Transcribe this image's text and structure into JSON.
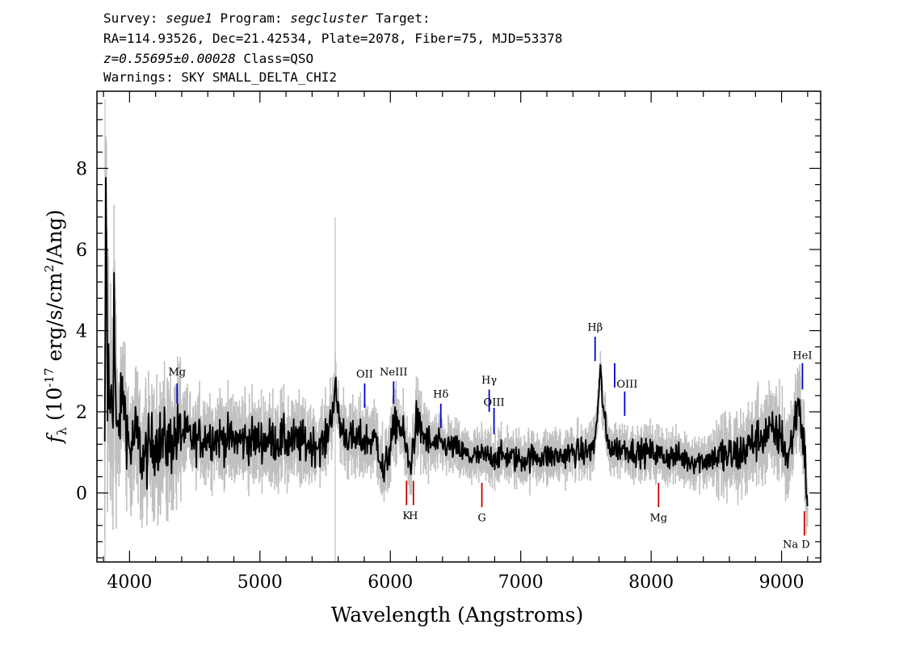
{
  "header": {
    "line1": {
      "prefix": "Survey: ",
      "survey": "segue1",
      "mid": " Program: ",
      "program": "segcluster",
      "suffix": " Target:"
    },
    "line2": "RA=114.93526, Dec=21.42534, Plate=2078, Fiber=75, MJD=53378",
    "line3": {
      "redshift": "z=0.55695±0.00028",
      "cls": " Class=QSO"
    },
    "line4": "Warnings: SKY SMALL_DELTA_CHI2"
  },
  "chart_data": {
    "type": "line",
    "xlabel": "Wavelength (Angstroms)",
    "ylabel": "f_λ (10^-17 erg/s/cm²/Ang)",
    "xlim": [
      3750,
      9300
    ],
    "ylim": [
      -1.7,
      9.9
    ],
    "x_ticks": [
      4000,
      5000,
      6000,
      7000,
      8000,
      9000
    ],
    "y_ticks": [
      0,
      2,
      4,
      6,
      8
    ],
    "colors": {
      "flux": "#000000",
      "error": "#c0c0c0",
      "emission": "#0000cc",
      "absorption": "#cc0000"
    },
    "series": [
      {
        "role": "flux",
        "anchors": [
          [
            3810,
            0.5
          ],
          [
            3820,
            8.2
          ],
          [
            3830,
            2.0
          ],
          [
            3840,
            4.0
          ],
          [
            3850,
            1.0
          ],
          [
            3860,
            3.0
          ],
          [
            3870,
            2.0
          ],
          [
            3880,
            4.8
          ],
          [
            3900,
            1.2
          ],
          [
            3950,
            2.5
          ],
          [
            4000,
            1.0
          ],
          [
            4050,
            1.5
          ],
          [
            4100,
            0.8
          ],
          [
            4200,
            1.3
          ],
          [
            4300,
            1.2
          ],
          [
            4400,
            1.5
          ],
          [
            4500,
            1.3
          ],
          [
            4600,
            1.4
          ],
          [
            4800,
            1.3
          ],
          [
            5000,
            1.3
          ],
          [
            5200,
            1.3
          ],
          [
            5400,
            1.2
          ],
          [
            5500,
            1.2
          ],
          [
            5550,
            2.0
          ],
          [
            5580,
            2.5
          ],
          [
            5620,
            1.6
          ],
          [
            5700,
            1.3
          ],
          [
            5800,
            1.3
          ],
          [
            5900,
            1.3
          ],
          [
            5950,
            0.4
          ],
          [
            6000,
            1.2
          ],
          [
            6050,
            1.8
          ],
          [
            6100,
            1.4
          ],
          [
            6150,
            0.6
          ],
          [
            6200,
            1.8
          ],
          [
            6220,
            1.6
          ],
          [
            6300,
            1.2
          ],
          [
            6400,
            1.2
          ],
          [
            6500,
            1.1
          ],
          [
            6600,
            0.9
          ],
          [
            6700,
            0.9
          ],
          [
            6800,
            0.9
          ],
          [
            6900,
            0.9
          ],
          [
            7000,
            0.8
          ],
          [
            7100,
            0.9
          ],
          [
            7200,
            0.9
          ],
          [
            7300,
            0.9
          ],
          [
            7400,
            1.0
          ],
          [
            7500,
            1.0
          ],
          [
            7560,
            1.1
          ],
          [
            7590,
            2.0
          ],
          [
            7610,
            3.0
          ],
          [
            7630,
            2.2
          ],
          [
            7660,
            1.3
          ],
          [
            7700,
            1.1
          ],
          [
            7800,
            1.1
          ],
          [
            7900,
            1.0
          ],
          [
            8000,
            1.0
          ],
          [
            8100,
            0.9
          ],
          [
            8200,
            0.9
          ],
          [
            8300,
            0.8
          ],
          [
            8400,
            0.8
          ],
          [
            8500,
            0.9
          ],
          [
            8600,
            0.9
          ],
          [
            8700,
            1.0
          ],
          [
            8800,
            1.3
          ],
          [
            8900,
            1.5
          ],
          [
            9000,
            1.4
          ],
          [
            9050,
            0.8
          ],
          [
            9100,
            1.7
          ],
          [
            9130,
            2.3
          ],
          [
            9160,
            1.5
          ],
          [
            9180,
            0.8
          ],
          [
            9200,
            -0.3
          ]
        ]
      }
    ],
    "spectral_lines": [
      {
        "label": "Mg",
        "kind": "emission",
        "wavelength": 4365,
        "y0": 2.2,
        "y1": 2.7,
        "label_y": 2.9
      },
      {
        "label": "OII",
        "kind": "emission",
        "wavelength": 5803,
        "y0": 2.1,
        "y1": 2.7,
        "label_y": 2.85
      },
      {
        "label": "NeIII",
        "kind": "emission",
        "wavelength": 6025,
        "y0": 2.2,
        "y1": 2.75,
        "label_y": 2.9
      },
      {
        "label": "Hδ",
        "kind": "emission",
        "wavelength": 6387,
        "y0": 1.6,
        "y1": 2.2,
        "label_y": 2.35
      },
      {
        "label": "Hγ",
        "kind": "emission",
        "wavelength": 6758,
        "y0": 2.0,
        "y1": 2.55,
        "label_y": 2.7
      },
      {
        "label": "OIII",
        "kind": "emission",
        "wavelength": 6795,
        "y0": 1.45,
        "y1": 2.1,
        "label_y": 2.15
      },
      {
        "label": "Hβ",
        "kind": "emission",
        "wavelength": 7570,
        "y0": 3.25,
        "y1": 3.85,
        "label_y": 4.0
      },
      {
        "label": "OIII",
        "kind": "emission",
        "wavelength": 7720,
        "y0": 2.6,
        "y1": 3.2,
        "label_y": 2.6
      },
      {
        "label": "OIII",
        "kind": "emission",
        "wavelength": 7797,
        "y0": 1.9,
        "y1": 2.5,
        "label_y": 2.6
      },
      {
        "label": "HeI",
        "kind": "emission",
        "wavelength": 9160,
        "y0": 2.55,
        "y1": 3.2,
        "label_y": 3.3
      },
      {
        "label": "K",
        "kind": "absorption",
        "wavelength": 6124,
        "y0": -0.3,
        "y1": 0.3,
        "label_y": -0.65
      },
      {
        "label": "H",
        "kind": "absorption",
        "wavelength": 6177,
        "y0": -0.3,
        "y1": 0.3,
        "label_y": -0.65
      },
      {
        "label": "G",
        "kind": "absorption",
        "wavelength": 6702,
        "y0": -0.35,
        "y1": 0.25,
        "label_y": -0.7
      },
      {
        "label": "Mg",
        "kind": "absorption",
        "wavelength": 8057,
        "y0": -0.35,
        "y1": 0.25,
        "label_y": -0.7
      },
      {
        "label": "Na D",
        "kind": "absorption",
        "wavelength": 9175,
        "y0": -1.05,
        "y1": -0.45,
        "label_y": -1.35
      }
    ]
  }
}
